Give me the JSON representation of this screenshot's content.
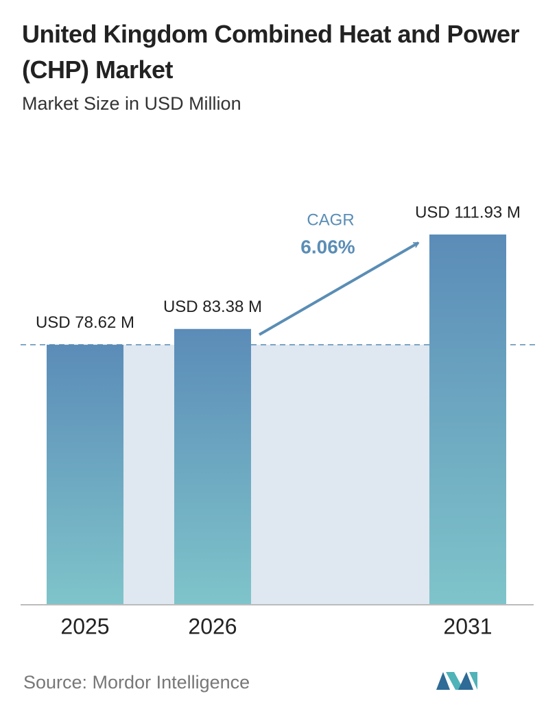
{
  "chart_data": {
    "type": "bar",
    "title": "United Kingdom Combined Heat and Power (CHP) Market",
    "subtitle": "Market Size in USD Million",
    "categories": [
      "2025",
      "2026",
      "2031"
    ],
    "values": [
      78.62,
      83.38,
      111.93
    ],
    "value_labels": [
      "USD 78.62 M",
      "USD 83.38 M",
      "USD 111.93 M"
    ],
    "annotations": [
      "CAGR",
      "6.06%"
    ],
    "source": "Source: Mordor Intelligence"
  }
}
